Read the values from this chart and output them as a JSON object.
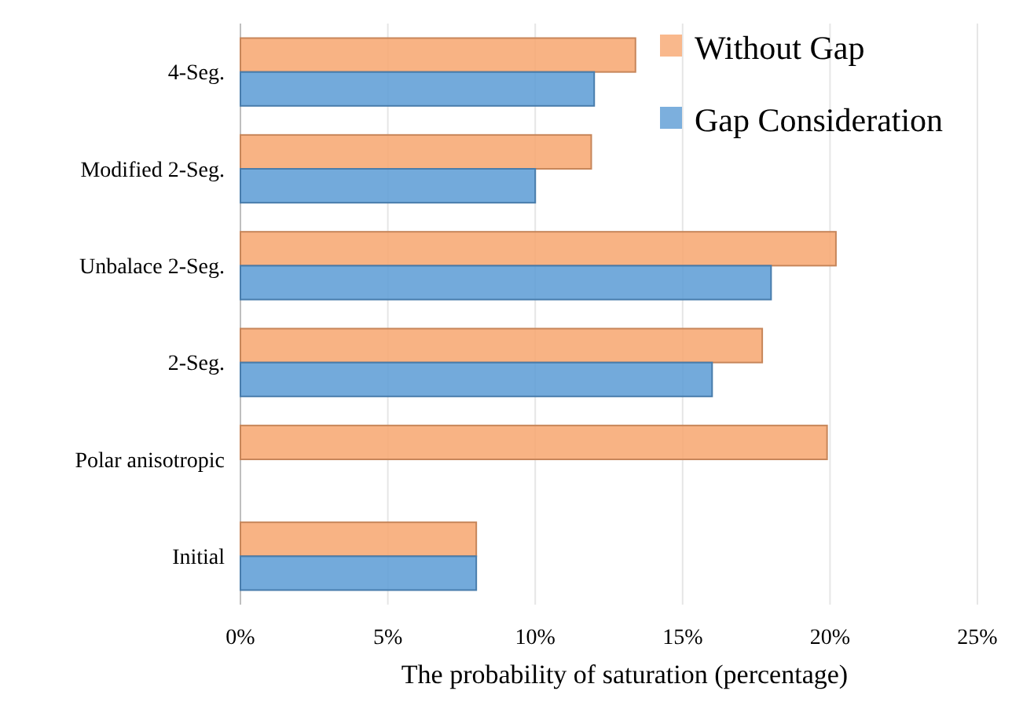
{
  "chart_data": {
    "type": "bar",
    "orientation": "horizontal",
    "xlabel": "The probability of saturation (percentage)",
    "categories": [
      "4-Seg.",
      "Modified 2-Seg.",
      "Unbalace 2-Seg.",
      "2-Seg.",
      "Polar anisotropic",
      "Initial"
    ],
    "series": [
      {
        "name": "Without Gap",
        "color": "#f7a66f",
        "values": [
          13.4,
          11.9,
          20.2,
          17.7,
          19.9,
          8.0
        ]
      },
      {
        "name": "Gap Consideration",
        "color": "#5b9bd5",
        "values": [
          12.0,
          10.0,
          18.0,
          16.0,
          null,
          8.0
        ]
      }
    ],
    "xlim": [
      0,
      25
    ],
    "xticks": [
      {
        "value": 0,
        "label": "0%"
      },
      {
        "value": 5,
        "label": "5%"
      },
      {
        "value": 10,
        "label": "10%"
      },
      {
        "value": 15,
        "label": "15%"
      },
      {
        "value": 20,
        "label": "20%"
      },
      {
        "value": 25,
        "label": "25%"
      }
    ],
    "grid": "x",
    "legend": "top right"
  }
}
